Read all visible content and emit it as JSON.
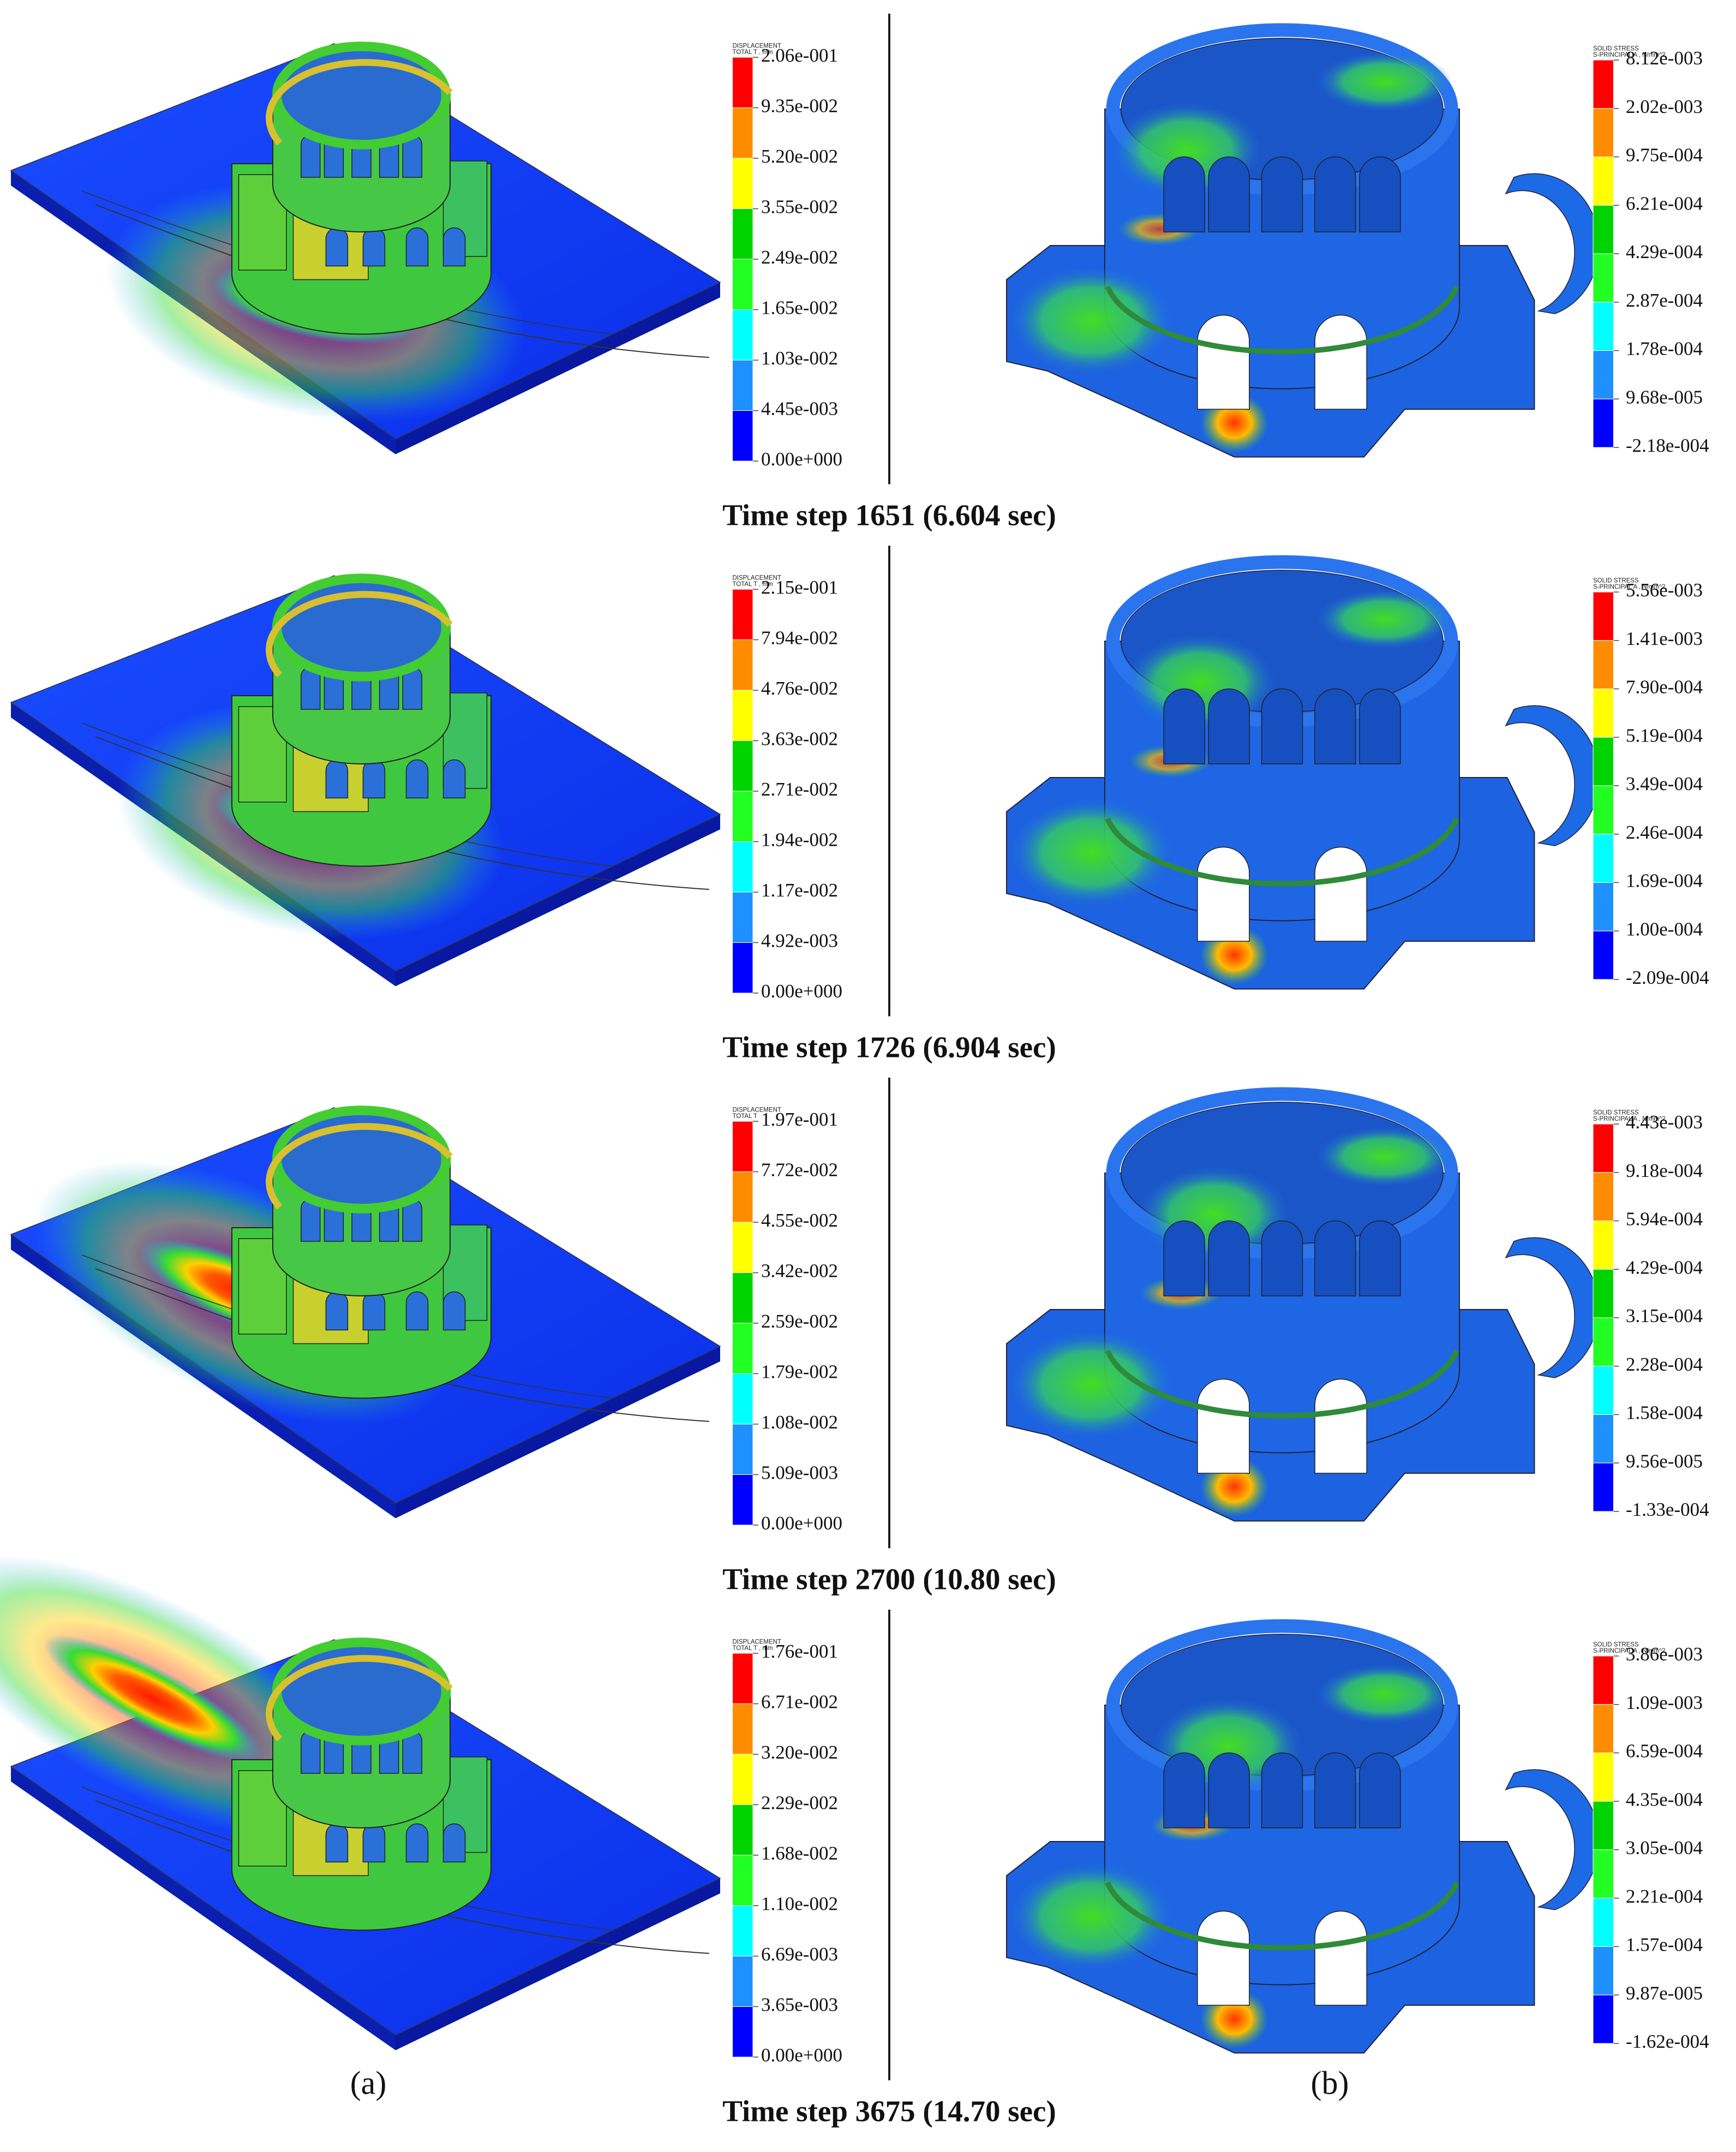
{
  "panel_labels": [
    "(a)",
    "(b)"
  ],
  "rows": [
    {
      "caption": "Time step 1651 (6.604 sec)",
      "displacement_legend": {
        "title": [
          "DISPLACEMENT",
          "TOTAL T , mm"
        ],
        "labels": [
          "2.06e-001",
          "9.35e-002",
          "5.20e-002",
          "3.55e-002",
          "2.49e-002",
          "1.65e-002",
          "1.03e-002",
          "4.45e-003",
          "0.00e+000"
        ]
      },
      "stress_legend": {
        "title": [
          "SOLID STRESS",
          "S-PRINCIPAL A , N/mm^2"
        ],
        "labels": [
          "8.12e-003",
          "2.02e-003",
          "9.75e-004",
          "6.21e-004",
          "4.29e-004",
          "2.87e-004",
          "1.78e-004",
          "9.68e-005",
          "-2.18e-004"
        ]
      }
    },
    {
      "caption": "Time step 1726 (6.904 sec)",
      "displacement_legend": {
        "title": [
          "DISPLACEMENT",
          "TOTAL T , mm"
        ],
        "labels": [
          "2.15e-001",
          "7.94e-002",
          "4.76e-002",
          "3.63e-002",
          "2.71e-002",
          "1.94e-002",
          "1.17e-002",
          "4.92e-003",
          "0.00e+000"
        ]
      },
      "stress_legend": {
        "title": [
          "SOLID STRESS",
          "S-PRINCIPAL A , N/mm^2"
        ],
        "labels": [
          "5.56e-003",
          "1.41e-003",
          "7.90e-004",
          "5.19e-004",
          "3.49e-004",
          "2.46e-004",
          "1.69e-004",
          "1.00e-004",
          "-2.09e-004"
        ]
      }
    },
    {
      "caption": "Time step 2700 (10.80 sec)",
      "displacement_legend": {
        "title": [
          "DISPLACEMENT",
          "TOTAL T"
        ],
        "labels": [
          "1.97e-001",
          "7.72e-002",
          "4.55e-002",
          "3.42e-002",
          "2.59e-002",
          "1.79e-002",
          "1.08e-002",
          "5.09e-003",
          "0.00e+000"
        ]
      },
      "stress_legend": {
        "title": [
          "SOLID STRESS",
          "S-PRINCIPAL A , N/mm^2"
        ],
        "labels": [
          "4.43e-003",
          "9.18e-004",
          "5.94e-004",
          "4.29e-004",
          "3.15e-004",
          "2.28e-004",
          "1.58e-004",
          "9.56e-005",
          "-1.33e-004"
        ]
      }
    },
    {
      "caption": "Time step 3675 (14.70 sec)",
      "displacement_legend": {
        "title": [
          "DISPLACEMENT",
          "TOTAL T , mm"
        ],
        "labels": [
          "1.76e-001",
          "6.71e-002",
          "3.20e-002",
          "2.29e-002",
          "1.68e-002",
          "1.10e-002",
          "6.69e-003",
          "3.65e-003",
          "0.00e+000"
        ]
      },
      "stress_legend": {
        "title": [
          "SOLID STRESS",
          "S-PRINCIPAL A , N/mm^2"
        ],
        "labels": [
          "3.86e-003",
          "1.09e-003",
          "6.59e-004",
          "4.35e-004",
          "3.05e-004",
          "2.21e-004",
          "1.57e-004",
          "9.87e-005",
          "-1.62e-004"
        ]
      }
    }
  ]
}
